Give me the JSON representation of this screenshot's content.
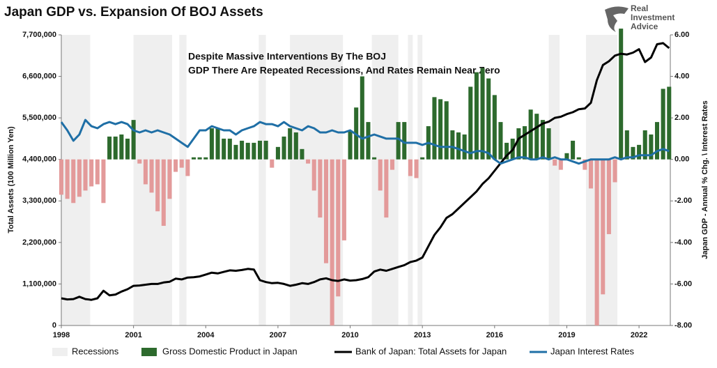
{
  "chart_data": {
    "type": "combo",
    "title": "Japan GDP vs. Expansion Of BOJ Assets",
    "annotation": [
      "Despite Massive Interventions By The BOJ",
      "GDP There Are Repeated Recessions, And Rates Remain Near Zero"
    ],
    "ylabel": "Total Assets (100 Million Yen)",
    "y2label": "Japan GDP - Annual % Chg. \\ Interest Rates",
    "xlim": [
      1998,
      2023.3
    ],
    "xticks": [
      1998,
      2001,
      2004,
      2007,
      2010,
      2013,
      2016,
      2019,
      2022
    ],
    "ylim": [
      0,
      7700000
    ],
    "yticks": [
      0,
      {
        "value": 1100000,
        "label": "1,100,000"
      },
      {
        "value": 2200000,
        "label": "2,200,000"
      },
      {
        "value": 3300000,
        "label": "3,300,000"
      },
      {
        "value": 4400000,
        "label": "4,400,000"
      },
      {
        "value": 5500000,
        "label": "5,500,000"
      },
      {
        "value": 6600000,
        "label": "6,600,000"
      },
      {
        "value": 7700000,
        "label": "7,700,000"
      }
    ],
    "y2lim": [
      -8,
      6
    ],
    "y2ticks": [
      {
        "value": -8,
        "label": "-8.00"
      },
      {
        "value": -6,
        "label": "-6.00"
      },
      {
        "value": -4,
        "label": "-4.00"
      },
      {
        "value": -2,
        "label": "-2.00"
      },
      {
        "value": 0,
        "label": "0.00"
      },
      {
        "value": 2,
        "label": "2.00"
      },
      {
        "value": 4,
        "label": "4.00"
      },
      {
        "value": 6,
        "label": "6.00"
      }
    ],
    "recessions": {
      "name": "Recessions",
      "color": "#efefef",
      "periods": [
        [
          1998.0,
          1999.2
        ],
        [
          2001.0,
          2002.6
        ],
        [
          2002.9,
          2003.2
        ],
        [
          2006.2,
          2006.5
        ],
        [
          2007.5,
          2009.7
        ],
        [
          2010.9,
          2012.0
        ],
        [
          2012.4,
          2012.6
        ],
        [
          2012.8,
          2013.0
        ],
        [
          2018.25,
          2018.7
        ],
        [
          2019.8,
          2021.1
        ]
      ]
    },
    "x": [
      1998,
      1998.25,
      1998.5,
      1998.75,
      1999,
      1999.25,
      1999.5,
      1999.75,
      2000,
      2000.25,
      2000.5,
      2000.75,
      2001,
      2001.25,
      2001.5,
      2001.75,
      2002,
      2002.25,
      2002.5,
      2002.75,
      2003,
      2003.25,
      2003.5,
      2003.75,
      2004,
      2004.25,
      2004.5,
      2004.75,
      2005,
      2005.25,
      2005.5,
      2005.75,
      2006,
      2006.25,
      2006.5,
      2006.75,
      2007,
      2007.25,
      2007.5,
      2007.75,
      2008,
      2008.25,
      2008.5,
      2008.75,
      2009,
      2009.25,
      2009.5,
      2009.75,
      2010,
      2010.25,
      2010.5,
      2010.75,
      2011,
      2011.25,
      2011.5,
      2011.75,
      2012,
      2012.25,
      2012.5,
      2012.75,
      2013,
      2013.25,
      2013.5,
      2013.75,
      2014,
      2014.25,
      2014.5,
      2014.75,
      2015,
      2015.25,
      2015.5,
      2015.75,
      2016,
      2016.25,
      2016.5,
      2016.75,
      2017,
      2017.25,
      2017.5,
      2017.75,
      2018,
      2018.25,
      2018.5,
      2018.75,
      2019,
      2019.25,
      2019.5,
      2019.75,
      2020,
      2020.25,
      2020.5,
      2020.75,
      2021,
      2021.25,
      2021.5,
      2021.75,
      2022,
      2022.25,
      2022.5,
      2022.75,
      2023,
      2023.25
    ],
    "series": [
      {
        "name": "Gross Domestic Product in Japan",
        "type": "bar",
        "axis": "y2",
        "color": "#2d6a2d",
        "negative_color": "#e39a9a",
        "values": [
          -1.7,
          -1.9,
          -2.1,
          -1.8,
          -1.5,
          -1.3,
          -1.2,
          -2.1,
          1.1,
          1.1,
          1.2,
          1.0,
          1.9,
          -0.2,
          -1.2,
          -1.6,
          -2.5,
          -3.2,
          -1.9,
          -0.6,
          -0.4,
          -0.8,
          0.1,
          0.1,
          0.1,
          1.5,
          1.5,
          1.0,
          1.0,
          0.7,
          0.9,
          0.8,
          0.8,
          0.9,
          0.9,
          -0.4,
          0.6,
          1.1,
          1.5,
          1.3,
          0.5,
          -0.2,
          -1.5,
          -2.8,
          -5.0,
          -8.0,
          -6.6,
          -3.9,
          1.4,
          2.5,
          4.0,
          1.8,
          0.1,
          -1.5,
          -2.8,
          -0.5,
          1.8,
          1.8,
          -0.8,
          -0.9,
          0.1,
          1.6,
          3.0,
          2.9,
          2.8,
          1.4,
          1.3,
          1.2,
          3.5,
          4.2,
          4.4,
          3.9,
          3.1,
          1.8,
          0.8,
          1.0,
          1.5,
          1.6,
          2.4,
          2.2,
          1.9,
          1.5,
          -0.3,
          -0.5,
          0.3,
          0.9,
          0.1,
          -0.5,
          -1.4,
          -8.0,
          -6.5,
          -3.6,
          -1.1,
          6.3,
          1.4,
          0.6,
          0.7,
          1.4,
          1.2,
          1.8,
          3.4,
          3.5
        ]
      },
      {
        "name": "Bank of Japan: Total Assets for Japan",
        "type": "line",
        "color": "#000000",
        "values": [
          720000,
          690000,
          700000,
          760000,
          700000,
          680000,
          720000,
          920000,
          800000,
          820000,
          900000,
          960000,
          1050000,
          1060000,
          1080000,
          1100000,
          1100000,
          1140000,
          1160000,
          1240000,
          1220000,
          1270000,
          1280000,
          1300000,
          1350000,
          1400000,
          1380000,
          1420000,
          1460000,
          1450000,
          1470000,
          1500000,
          1480000,
          1200000,
          1150000,
          1120000,
          1130000,
          1100000,
          1050000,
          1080000,
          1120000,
          1100000,
          1150000,
          1220000,
          1250000,
          1200000,
          1180000,
          1220000,
          1190000,
          1200000,
          1230000,
          1280000,
          1430000,
          1480000,
          1450000,
          1500000,
          1550000,
          1600000,
          1680000,
          1720000,
          1800000,
          2100000,
          2400000,
          2600000,
          2850000,
          2950000,
          3100000,
          3250000,
          3400000,
          3550000,
          3750000,
          3900000,
          4100000,
          4300000,
          4500000,
          4650000,
          4950000,
          5050000,
          5150000,
          5250000,
          5350000,
          5400000,
          5500000,
          5530000,
          5600000,
          5650000,
          5730000,
          5750000,
          5900000,
          6500000,
          6900000,
          7000000,
          7150000,
          7200000,
          7180000,
          7230000,
          7320000,
          6980000,
          7100000,
          7450000,
          7480000,
          7350000
        ]
      },
      {
        "name": "Japan Interest Rates",
        "type": "line",
        "axis": "y2",
        "color": "#1f6fa6",
        "values": [
          1.8,
          1.4,
          0.9,
          1.2,
          1.9,
          1.6,
          1.5,
          1.7,
          1.8,
          1.7,
          1.8,
          1.7,
          1.4,
          1.3,
          1.4,
          1.3,
          1.4,
          1.3,
          1.2,
          1.0,
          0.8,
          0.6,
          1.0,
          1.4,
          1.4,
          1.6,
          1.5,
          1.4,
          1.4,
          1.2,
          1.4,
          1.5,
          1.6,
          1.8,
          1.7,
          1.7,
          1.6,
          1.8,
          1.6,
          1.5,
          1.4,
          1.6,
          1.5,
          1.3,
          1.3,
          1.4,
          1.3,
          1.3,
          1.4,
          1.2,
          1.0,
          1.1,
          1.2,
          1.1,
          1.0,
          1.0,
          1.0,
          0.8,
          0.8,
          0.8,
          0.7,
          0.8,
          0.7,
          0.6,
          0.6,
          0.6,
          0.5,
          0.4,
          0.3,
          0.4,
          0.4,
          0.3,
          0.0,
          -0.2,
          -0.1,
          0.0,
          0.1,
          0.1,
          0.0,
          0.0,
          0.1,
          0.0,
          0.1,
          0.0,
          0.0,
          -0.1,
          -0.2,
          -0.1,
          0.0,
          0.0,
          0.0,
          0.0,
          0.1,
          0.0,
          0.1,
          0.1,
          0.2,
          0.2,
          0.2,
          0.4,
          0.5,
          0.4
        ]
      }
    ]
  },
  "branding": {
    "lines": [
      "Real",
      "Investment",
      "Advice"
    ]
  }
}
